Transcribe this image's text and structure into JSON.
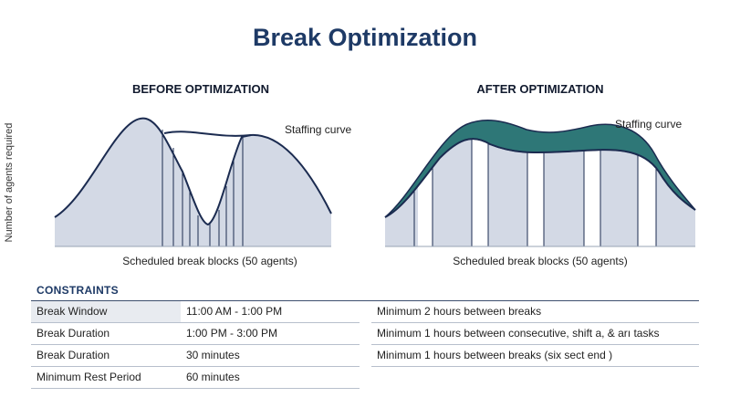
{
  "title": "Break Optimization",
  "before": {
    "title": "BEFORE OPTIMIZATION",
    "curve_label": "Staffing curve",
    "caption": "Scheduled break blocks (50 agents)",
    "y_label": "Number of agents required"
  },
  "after": {
    "title": "AFTER OPTIMIZATION",
    "curve_label": "Staffing curve",
    "caption": "Scheduled break blocks (50 agents)"
  },
  "constraints": {
    "heading": "CONSTRAINTS",
    "rows": [
      {
        "label": "Break Window",
        "value": "11:00 AM - 1:00 PM"
      },
      {
        "label": "Break Duration",
        "value": "1:00 PM - 3:00 PM"
      },
      {
        "label": "Break Duration",
        "value": "30 minutes"
      },
      {
        "label": "Minimum Rest Period",
        "value": "60 minutes"
      }
    ],
    "notes": [
      "Minimum 2 hours between breaks",
      "Minimum 1 hours between consecutive, shift a, & arı tasks",
      "Minimum 1 hours between breaks (six sect end )"
    ]
  },
  "colors": {
    "fill": "#d3d9e5",
    "line": "#1b2b50",
    "teal": "#2e7777",
    "title": "#1e3a66"
  }
}
